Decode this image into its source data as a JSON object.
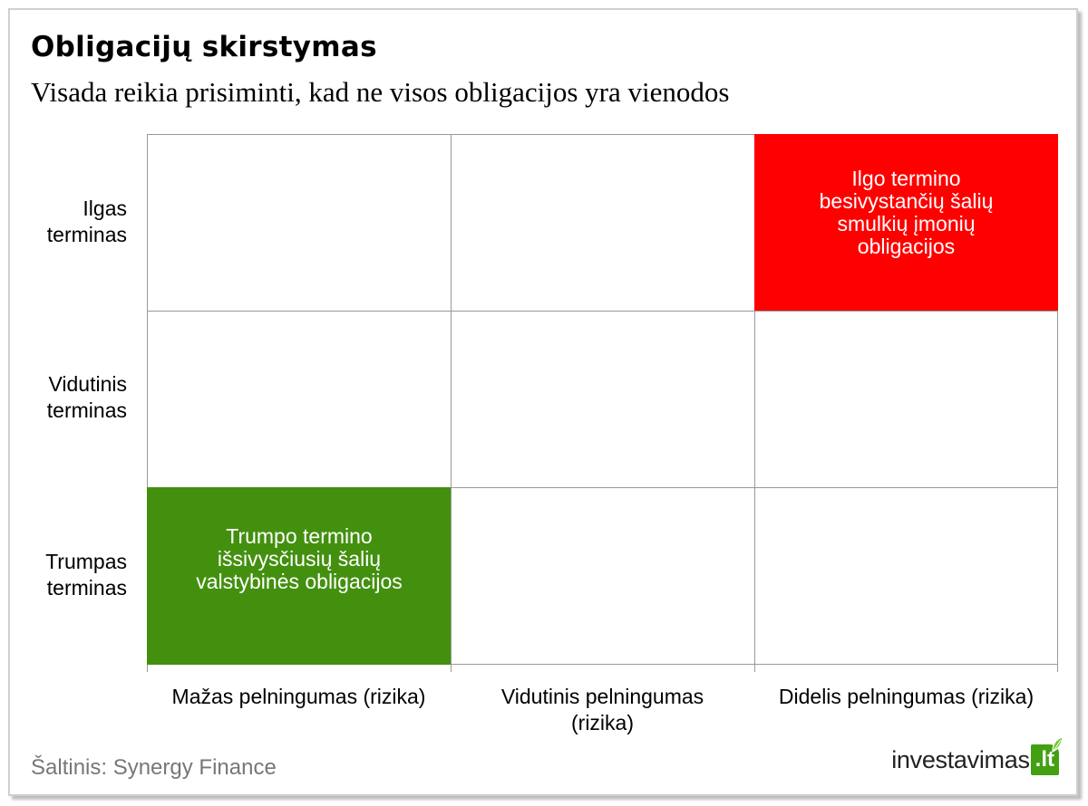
{
  "title": "Obligacijų skirstymas",
  "subtitle": "Visada reikia prisiminti, kad ne visos obligacijos  yra vienodos",
  "rows": [
    {
      "line1": "Ilgas",
      "line2": "terminas"
    },
    {
      "line1": "Vidutinis",
      "line2": "terminas"
    },
    {
      "line1": "Trumpas",
      "line2": "terminas"
    }
  ],
  "columns": [
    {
      "line1": "Mažas pelningumas (rizika)",
      "line2": ""
    },
    {
      "line1": "Vidutinis pelningumas",
      "line2": "(rizika)"
    },
    {
      "line1": "Didelis pelningumas (rizika)",
      "line2": ""
    }
  ],
  "highlights": {
    "high": {
      "text": "Ilgo termino\nbesivystančių šalių\nsmulkių  įmonių\nobligacijos",
      "color": "#ff0000"
    },
    "low": {
      "text": "Trumpo  termino\nišsivysčiusių šalių\nvalstybinės obligacijos",
      "color": "#43900f"
    }
  },
  "source": "Šaltinis: Synergy Finance",
  "logo": {
    "main": "investavimas",
    "badge": ".lt",
    "icon": "leaf-icon"
  }
}
